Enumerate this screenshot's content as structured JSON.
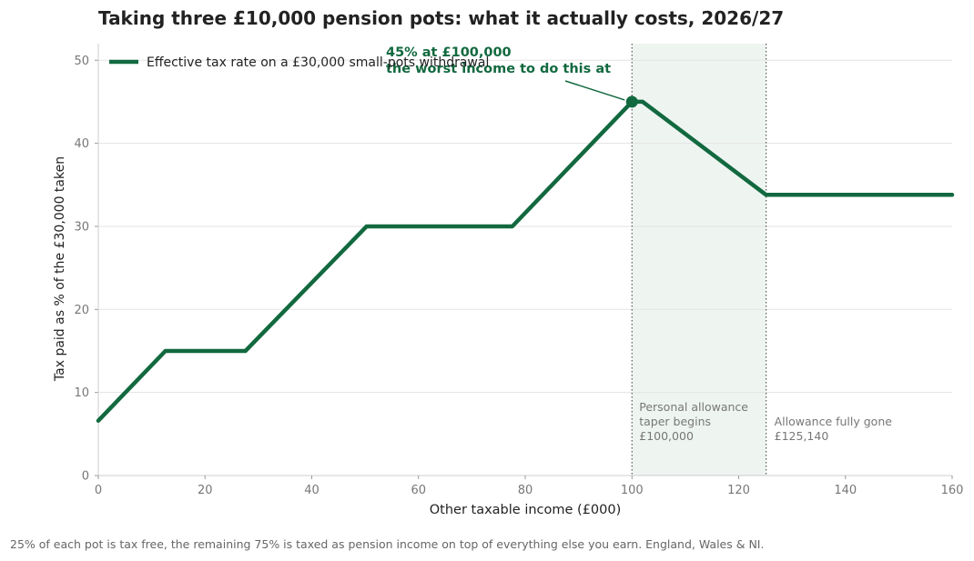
{
  "title": "Taking three £10,000 pension pots: what it actually costs, 2026/27",
  "footnote": "25% of each pot is tax free, the remaining 75% is taxed as pension income on top of everything else you earn. England, Wales & NI.",
  "colors": {
    "line": "#12693f",
    "shade": "#eef5f1",
    "grid": "#e3e3e3",
    "muted": "#777777",
    "text": "#222222"
  },
  "chart_data": {
    "type": "line",
    "xlabel": "Other taxable income (£000)",
    "ylabel": "Tax paid as % of the £30,000 taken",
    "xlim": [
      0,
      160
    ],
    "ylim": [
      0,
      52
    ],
    "xticks": [
      0,
      20,
      40,
      60,
      80,
      100,
      120,
      140,
      160
    ],
    "yticks": [
      0,
      10,
      20,
      30,
      40,
      50
    ],
    "grid": "horizontal",
    "legend_position": "top-left",
    "series": [
      {
        "name": "Effective tax rate on a £30,000 small-pots withdrawal",
        "x": [
          0,
          12.57,
          27.57,
          50.27,
          77.57,
          100,
          102,
          125.14,
          160
        ],
        "y": [
          6.6,
          15,
          15,
          30,
          30,
          45,
          45,
          33.8,
          33.8
        ]
      }
    ],
    "highlight_point": {
      "x": 100,
      "y": 45
    },
    "annotation": {
      "line1": "45% at £100,000",
      "line2": "the worst income to do this at"
    },
    "shaded_region": {
      "x_start": 100,
      "x_end": 125.14
    },
    "vlines": [
      {
        "x": 100,
        "label_lines": [
          "Personal allowance",
          "taper begins",
          "£100,000"
        ]
      },
      {
        "x": 125.14,
        "label_lines": [
          "Allowance fully gone",
          "£125,140"
        ]
      }
    ]
  }
}
